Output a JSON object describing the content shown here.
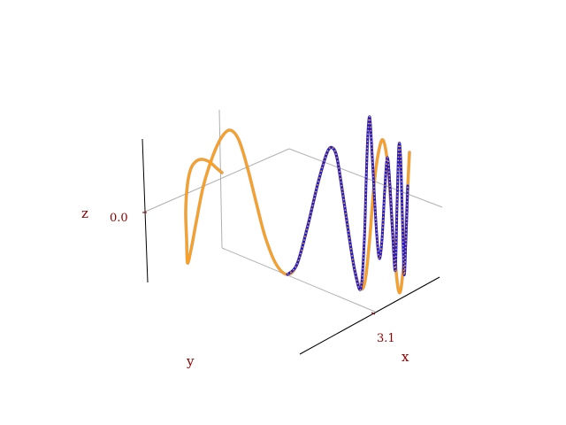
{
  "chart_data": {
    "type": "line",
    "projection": "3d",
    "grid": true,
    "legend": "none",
    "axes": {
      "x": {
        "label": "x",
        "ticks": [
          "3.1"
        ]
      },
      "y": {
        "label": "y",
        "ticks": []
      },
      "z": {
        "label": "z",
        "ticks": [
          "0.0"
        ]
      }
    },
    "series": [
      {
        "color": "#ff9f1c",
        "style": "solid",
        "points": [
          [
            251,
            195
          ],
          [
            245,
            190
          ],
          [
            237,
            183
          ],
          [
            229,
            180
          ],
          [
            222,
            182
          ],
          [
            216,
            190
          ],
          [
            212,
            208
          ],
          [
            210,
            238
          ],
          [
            211,
            270
          ],
          [
            212,
            297
          ],
          [
            216,
            282
          ],
          [
            222,
            250
          ],
          [
            230,
            210
          ],
          [
            240,
            178
          ],
          [
            250,
            156
          ],
          [
            260,
            147
          ],
          [
            270,
            158
          ],
          [
            280,
            190
          ],
          [
            290,
            230
          ],
          [
            300,
            268
          ],
          [
            312,
            298
          ],
          [
            325,
            310
          ],
          [
            336,
            298
          ],
          [
            348,
            255
          ],
          [
            360,
            205
          ],
          [
            370,
            172
          ],
          [
            376,
            167
          ],
          [
            381,
            178
          ],
          [
            387,
            215
          ],
          [
            394,
            262
          ],
          [
            401,
            305
          ],
          [
            408,
            326
          ],
          [
            413,
            316
          ],
          [
            418,
            270
          ],
          [
            423,
            208
          ],
          [
            428,
            172
          ],
          [
            433,
            158
          ],
          [
            438,
            182
          ],
          [
            442,
            232
          ],
          [
            446,
            285
          ],
          [
            450,
            325
          ],
          [
            453,
            328
          ],
          [
            456,
            302
          ],
          [
            459,
            258
          ],
          [
            461,
            212
          ],
          [
            463,
            172
          ]
        ]
      },
      {
        "color": "#1a1ad6",
        "style": "dotted",
        "points": [
          [
            325,
            310
          ],
          [
            336,
            298
          ],
          [
            348,
            255
          ],
          [
            360,
            205
          ],
          [
            370,
            172
          ],
          [
            376,
            167
          ],
          [
            381,
            178
          ],
          [
            387,
            215
          ],
          [
            394,
            262
          ],
          [
            401,
            305
          ],
          [
            408,
            326
          ],
          [
            412,
            270
          ],
          [
            414,
            205
          ],
          [
            416,
            150
          ],
          [
            418,
            132
          ],
          [
            420,
            160
          ],
          [
            423,
            215
          ],
          [
            426,
            265
          ],
          [
            429,
            292
          ],
          [
            432,
            270
          ],
          [
            435,
            215
          ],
          [
            438,
            178
          ],
          [
            441,
            210
          ],
          [
            444,
            265
          ],
          [
            447,
            305
          ],
          [
            449,
            230
          ],
          [
            451,
            165
          ],
          [
            453,
            178
          ],
          [
            455,
            245
          ],
          [
            457,
            310
          ],
          [
            459,
            270
          ],
          [
            461,
            210
          ]
        ]
      }
    ]
  }
}
